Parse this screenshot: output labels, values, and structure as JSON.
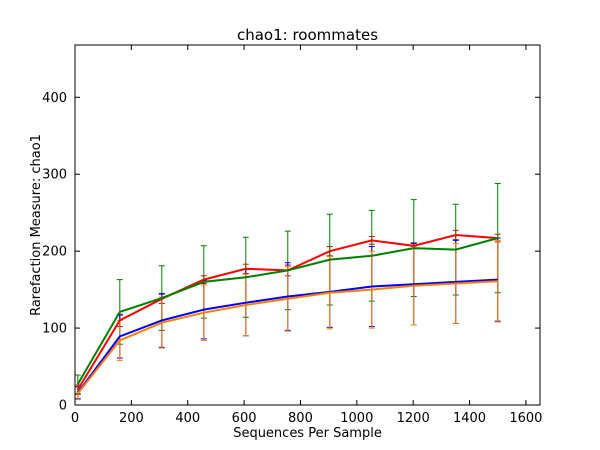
{
  "chart_data": {
    "type": "line",
    "title": "chao1: roommates",
    "xlabel": "Sequences Per Sample",
    "ylabel": "Rarefaction Measure: chao1",
    "xlim": [
      0,
      1650
    ],
    "ylim": [
      0,
      468
    ],
    "xticks": [
      0,
      200,
      400,
      600,
      800,
      1000,
      1200,
      1400,
      1600
    ],
    "yticks": [
      0,
      100,
      200,
      300,
      400
    ],
    "grid": false,
    "legend": "none",
    "x": [
      10,
      159,
      308,
      457,
      606,
      755,
      904,
      1053,
      1202,
      1351,
      1500
    ],
    "series": [
      {
        "color": "#ff0000",
        "values": [
          20,
          110,
          138,
          163,
          177,
          175,
          200,
          214,
          207,
          221,
          217
        ],
        "errors": [
          6,
          8,
          6,
          5,
          6,
          7,
          6,
          5,
          4,
          6,
          5
        ],
        "error_color": "#ff0000"
      },
      {
        "color": "#008000",
        "values": [
          27,
          121,
          139,
          160,
          166,
          175,
          189,
          194,
          204,
          202,
          217
        ],
        "errors": [
          12,
          42,
          42,
          47,
          52,
          51,
          59,
          59,
          63,
          59,
          71
        ],
        "error_color": "#008000"
      },
      {
        "color": "#0000ff",
        "values": [
          16,
          89,
          110,
          124,
          133,
          141,
          147,
          154,
          157,
          160,
          163
        ],
        "errors": [
          8,
          28,
          35,
          38,
          43,
          44,
          46,
          52,
          53,
          54,
          54
        ],
        "error_color": "#0000ff"
      },
      {
        "color": "#ff8000",
        "values": [
          15,
          84,
          107,
          120,
          130,
          138,
          146,
          150,
          155,
          158,
          161
        ],
        "errors": [
          8,
          26,
          33,
          36,
          40,
          42,
          47,
          50,
          51,
          52,
          53
        ],
        "error_color": "#ff8000"
      }
    ]
  }
}
